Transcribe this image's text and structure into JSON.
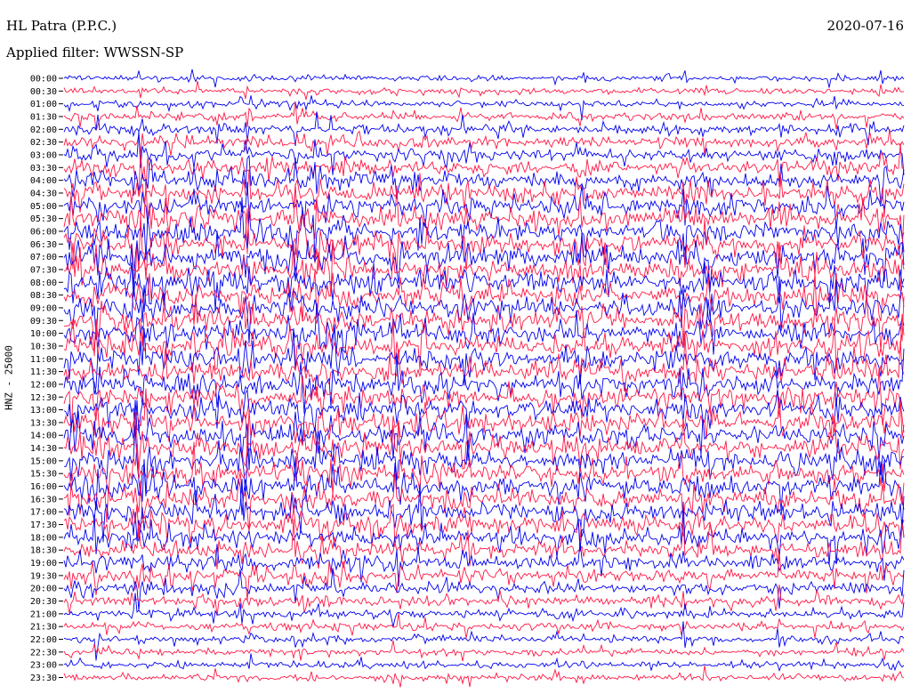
{
  "header": {
    "station": "HL Patra (P.P.C.)",
    "date": "2020-07-16",
    "filter": "Applied filter: WWSSN-SP"
  },
  "axis": {
    "channel": "HNZ - 25000"
  },
  "colors": {
    "trace_a": "#0000ee",
    "trace_b": "#ff1744",
    "background": "#ffffff"
  },
  "chart_data": {
    "type": "line",
    "description_kind": "helicorder",
    "rows": [
      {
        "time": "00:00",
        "activity": 0.15
      },
      {
        "time": "00:30",
        "activity": 0.18
      },
      {
        "time": "01:00",
        "activity": 0.2
      },
      {
        "time": "01:30",
        "activity": 0.3
      },
      {
        "time": "02:00",
        "activity": 0.38
      },
      {
        "time": "02:30",
        "activity": 0.42
      },
      {
        "time": "03:00",
        "activity": 0.5
      },
      {
        "time": "03:30",
        "activity": 0.6
      },
      {
        "time": "04:00",
        "activity": 0.68
      },
      {
        "time": "04:30",
        "activity": 0.75
      },
      {
        "time": "05:00",
        "activity": 0.82
      },
      {
        "time": "05:30",
        "activity": 0.85
      },
      {
        "time": "06:00",
        "activity": 0.88
      },
      {
        "time": "06:30",
        "activity": 0.9
      },
      {
        "time": "07:00",
        "activity": 0.9
      },
      {
        "time": "07:30",
        "activity": 0.9
      },
      {
        "time": "08:00",
        "activity": 0.9
      },
      {
        "time": "08:30",
        "activity": 0.9
      },
      {
        "time": "09:00",
        "activity": 0.88
      },
      {
        "time": "09:30",
        "activity": 0.88
      },
      {
        "time": "10:00",
        "activity": 0.88
      },
      {
        "time": "10:30",
        "activity": 0.88
      },
      {
        "time": "11:00",
        "activity": 0.88
      },
      {
        "time": "11:30",
        "activity": 0.88
      },
      {
        "time": "12:00",
        "activity": 0.88
      },
      {
        "time": "12:30",
        "activity": 0.88
      },
      {
        "time": "13:00",
        "activity": 0.88
      },
      {
        "time": "13:30",
        "activity": 0.88
      },
      {
        "time": "14:00",
        "activity": 0.88
      },
      {
        "time": "14:30",
        "activity": 0.86
      },
      {
        "time": "15:00",
        "activity": 0.84
      },
      {
        "time": "15:30",
        "activity": 0.84
      },
      {
        "time": "16:00",
        "activity": 0.84
      },
      {
        "time": "16:30",
        "activity": 0.82
      },
      {
        "time": "17:00",
        "activity": 0.82
      },
      {
        "time": "17:30",
        "activity": 0.78
      },
      {
        "time": "18:00",
        "activity": 0.74
      },
      {
        "time": "18:30",
        "activity": 0.7
      },
      {
        "time": "19:00",
        "activity": 0.62
      },
      {
        "time": "19:30",
        "activity": 0.55
      },
      {
        "time": "20:00",
        "activity": 0.45
      },
      {
        "time": "20:30",
        "activity": 0.38
      },
      {
        "time": "21:00",
        "activity": 0.32
      },
      {
        "time": "21:30",
        "activity": 0.28
      },
      {
        "time": "22:00",
        "activity": 0.25
      },
      {
        "time": "22:30",
        "activity": 0.22
      },
      {
        "time": "23:00",
        "activity": 0.2
      },
      {
        "time": "23:30",
        "activity": 0.18
      }
    ]
  }
}
